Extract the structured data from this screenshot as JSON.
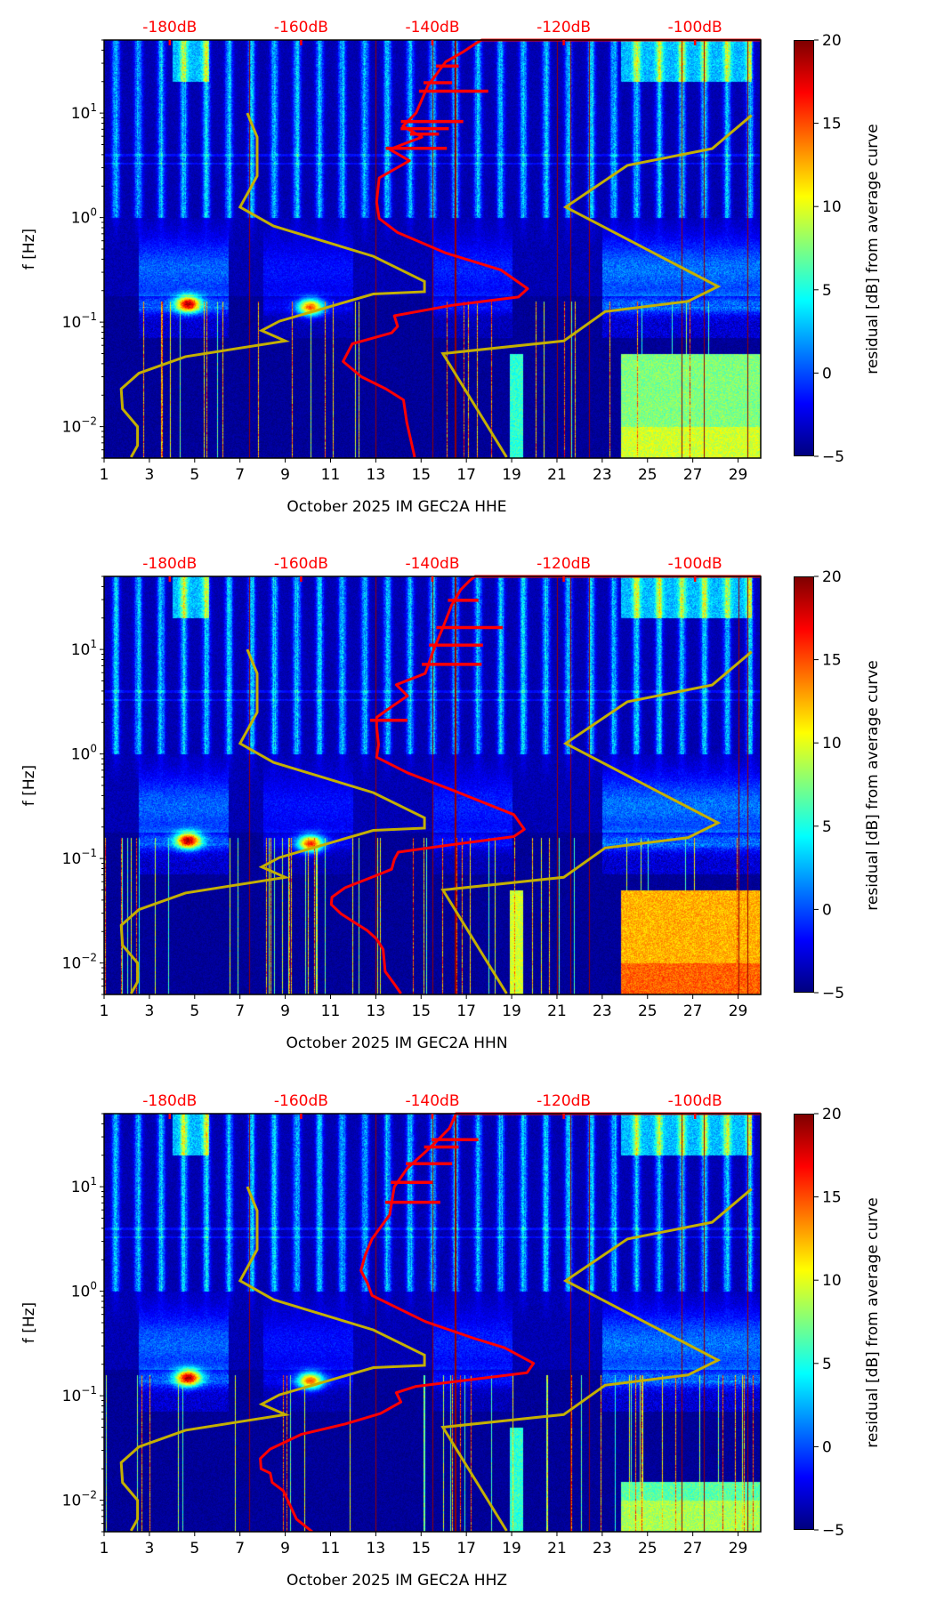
{
  "axes": {
    "ylabel": "f [Hz]",
    "xlim": [
      1,
      30
    ],
    "ylim": [
      0.005,
      50
    ],
    "x_ticks": [
      1,
      3,
      5,
      7,
      9,
      11,
      13,
      15,
      17,
      19,
      21,
      23,
      25,
      27,
      29
    ],
    "x_tick_labels": [
      "1",
      "3",
      "5",
      "7",
      "9",
      "11",
      "13",
      "15",
      "17",
      "19",
      "21",
      "23",
      "25",
      "27",
      "29"
    ],
    "y_ticks": [
      10,
      1,
      0.1,
      0.01
    ],
    "y_tick_labels": [
      {
        "base": "10",
        "exp": "1"
      },
      {
        "base": "10",
        "exp": "0"
      },
      {
        "base": "10",
        "exp": "−1"
      },
      {
        "base": "10",
        "exp": "−2"
      }
    ],
    "db_range": [
      -190,
      -90
    ],
    "db_ticks": [
      -180,
      -160,
      -140,
      -120,
      -100
    ],
    "db_tick_labels": [
      "-180dB",
      "-160dB",
      "-140dB",
      "-120dB",
      "-100dB"
    ],
    "db_color": "#ff0000",
    "colorbar": {
      "label": "residual [dB] from average curve",
      "range": [
        -5,
        20
      ],
      "ticks": [
        -5,
        0,
        5,
        10,
        15,
        20
      ],
      "tick_labels": [
        "−5",
        "0",
        "5",
        "10",
        "15",
        "20"
      ]
    }
  },
  "models": {
    "color": "#c4b000",
    "nlnm": [
      [
        -185.9,
        0.0051
      ],
      [
        -184.9,
        0.0066
      ],
      [
        -184.9,
        0.01
      ],
      [
        -187.2,
        0.0148
      ],
      [
        -187.4,
        0.0229
      ],
      [
        -184.7,
        0.0324
      ],
      [
        -177.6,
        0.0468
      ],
      [
        -162.4,
        0.066
      ],
      [
        -166.0,
        0.083
      ],
      [
        -163.3,
        0.102
      ],
      [
        -149.0,
        0.186
      ],
      [
        -141.2,
        0.195
      ],
      [
        -141.2,
        0.245
      ],
      [
        -149.0,
        0.427
      ],
      [
        -164.2,
        0.83
      ],
      [
        -169.3,
        1.26
      ],
      [
        -166.7,
        2.5
      ],
      [
        -166.7,
        5.9
      ],
      [
        -168.2,
        10
      ]
    ],
    "nhnm": [
      [
        -128.7,
        0.0051
      ],
      [
        -138.4,
        0.05
      ],
      [
        -120.0,
        0.066
      ],
      [
        -113.7,
        0.126
      ],
      [
        -101.1,
        0.158
      ],
      [
        -96.5,
        0.219
      ],
      [
        -119.7,
        1.26
      ],
      [
        -110.3,
        3.16
      ],
      [
        -97.4,
        4.57
      ],
      [
        -91.4,
        9.5
      ]
    ]
  },
  "chart_data": [
    {
      "type": "heatmap",
      "title": "October 2025 IM GEC2A  HHE",
      "xlabel": "October 2025 IM GEC2A  HHE",
      "channel": "HHE",
      "mean_psd_color": "#ff0000",
      "mean_psd": [
        [
          -142.7,
          0.0051
        ],
        [
          -143.9,
          0.011
        ],
        [
          -144.4,
          0.018
        ],
        [
          -147.1,
          0.023
        ],
        [
          -150.8,
          0.03
        ],
        [
          -153.6,
          0.042
        ],
        [
          -152.2,
          0.062
        ],
        [
          -146.2,
          0.079
        ],
        [
          -145.3,
          0.091
        ],
        [
          -145.8,
          0.115
        ],
        [
          -137.0,
          0.145
        ],
        [
          -126.9,
          0.174
        ],
        [
          -125.5,
          0.209
        ],
        [
          -129.6,
          0.316
        ],
        [
          -137.9,
          0.457
        ],
        [
          -145.3,
          0.72
        ],
        [
          -148.1,
          0.98
        ],
        [
          -148.5,
          1.41
        ],
        [
          -148.1,
          2.4
        ],
        [
          -143.5,
          3.5
        ],
        [
          -146.5,
          4.5
        ],
        [
          -141.6,
          5.9
        ],
        [
          -144.5,
          7.5
        ],
        [
          -142.5,
          10
        ],
        [
          -140.7,
          18.2
        ],
        [
          -138.0,
          30.9
        ],
        [
          -135.2,
          38.9
        ],
        [
          -133.3,
          46.8
        ],
        [
          -132.5,
          50
        ],
        [
          -90,
          50
        ]
      ],
      "psd_spikes": [
        [
          16.2,
          -131.5
        ],
        [
          19.5,
          -137
        ],
        [
          28.2,
          -136
        ],
        [
          8.3,
          -135.3
        ],
        [
          7.1,
          -137.5
        ],
        [
          4.6,
          -137.8
        ],
        [
          6.3,
          -139
        ]
      ],
      "features": {
        "hotspots": [
          [
            4.7,
            0.15,
            19
          ],
          [
            10.1,
            0.14,
            17
          ]
        ],
        "low_block_level": 9,
        "low_block_fmax": 0.05,
        "d19_level": 6,
        "bright_lines": [
          7.4,
          13.0,
          15.5,
          16.5,
          21.0,
          21.6,
          22.4,
          26.5,
          27.5,
          29.4
        ]
      }
    },
    {
      "type": "heatmap",
      "title": "October 2025 IM GEC2A  HHN",
      "xlabel": "October 2025 IM GEC2A  HHN",
      "channel": "HHN",
      "mean_psd_color": "#ff0000",
      "mean_psd": [
        [
          -144.8,
          0.0051
        ],
        [
          -145.8,
          0.0063
        ],
        [
          -147.2,
          0.0083
        ],
        [
          -147.5,
          0.0135
        ],
        [
          -148.5,
          0.017
        ],
        [
          -149.9,
          0.0204
        ],
        [
          -151.9,
          0.0245
        ],
        [
          -153.9,
          0.0295
        ],
        [
          -155.4,
          0.0363
        ],
        [
          -155.3,
          0.0427
        ],
        [
          -153.3,
          0.0525
        ],
        [
          -148.5,
          0.069
        ],
        [
          -146.2,
          0.079
        ],
        [
          -145.8,
          0.098
        ],
        [
          -145.2,
          0.115
        ],
        [
          -138.4,
          0.132
        ],
        [
          -127.6,
          0.162
        ],
        [
          -126.0,
          0.19
        ],
        [
          -127.6,
          0.263
        ],
        [
          -136.4,
          0.437
        ],
        [
          -143.8,
          0.66
        ],
        [
          -148.5,
          0.93
        ],
        [
          -148.2,
          1.23
        ],
        [
          -148.5,
          1.82
        ],
        [
          -148.5,
          2.24
        ],
        [
          -146.5,
          2.75
        ],
        [
          -143.8,
          3.6
        ],
        [
          -145.5,
          4.6
        ],
        [
          -141.1,
          5.9
        ],
        [
          -139.8,
          10
        ],
        [
          -138.4,
          16.2
        ],
        [
          -137.1,
          26.3
        ],
        [
          -135.7,
          37.2
        ],
        [
          -134.3,
          45.7
        ],
        [
          -133.5,
          50
        ],
        [
          -90,
          50
        ]
      ],
      "psd_spikes": [
        [
          16.2,
          -129.3
        ],
        [
          11,
          -132.3
        ],
        [
          7.2,
          -132.5
        ],
        [
          29.5,
          -133
        ],
        [
          2.1,
          -143.8
        ]
      ],
      "features": {
        "hotspots": [
          [
            4.7,
            0.15,
            19
          ],
          [
            10.1,
            0.14,
            18
          ]
        ],
        "low_block_level": 14,
        "low_block_fmax": 0.05,
        "d19_level": 10,
        "bright_lines": [
          7.4,
          13.0,
          15.5,
          16.5,
          21.0,
          21.6,
          22.4,
          29.0,
          29.4
        ]
      }
    },
    {
      "type": "heatmap",
      "title": "October 2025 IM GEC2A  HHZ",
      "xlabel": "October 2025 IM GEC2A  HHZ",
      "channel": "HHZ",
      "mean_psd_color": "#ff0000",
      "mean_psd": [
        [
          -158.3,
          0.005
        ],
        [
          -160.7,
          0.0066
        ],
        [
          -162.7,
          0.0123
        ],
        [
          -164.4,
          0.0148
        ],
        [
          -164.7,
          0.0182
        ],
        [
          -166.1,
          0.02
        ],
        [
          -166.2,
          0.0251
        ],
        [
          -164.7,
          0.0309
        ],
        [
          -160.0,
          0.0427
        ],
        [
          -153.3,
          0.0537
        ],
        [
          -147.9,
          0.0676
        ],
        [
          -144.8,
          0.087
        ],
        [
          -145.5,
          0.107
        ],
        [
          -142.5,
          0.123
        ],
        [
          -125.6,
          0.166
        ],
        [
          -124.6,
          0.204
        ],
        [
          -129.0,
          0.288
        ],
        [
          -133.7,
          0.355
        ],
        [
          -141.1,
          0.513
        ],
        [
          -149.2,
          0.91
        ],
        [
          -149.9,
          1.2
        ],
        [
          -150.9,
          1.58
        ],
        [
          -150.2,
          2.24
        ],
        [
          -149.2,
          3.16
        ],
        [
          -146.5,
          5.4
        ],
        [
          -145.8,
          10
        ],
        [
          -143.8,
          15.1
        ],
        [
          -141.1,
          21.4
        ],
        [
          -139.1,
          28.2
        ],
        [
          -137.4,
          36.3
        ],
        [
          -136.4,
          50
        ],
        [
          -90,
          50
        ]
      ],
      "psd_spikes": [
        [
          28.2,
          -133
        ],
        [
          24,
          -136
        ],
        [
          7.1,
          -138.8
        ],
        [
          11,
          -140
        ],
        [
          16.6,
          -137
        ]
      ],
      "features": {
        "hotspots": [
          [
            4.7,
            0.15,
            19
          ],
          [
            10.1,
            0.14,
            17
          ]
        ],
        "low_block_level": 8,
        "low_block_fmax": 0.015,
        "d19_level": 6,
        "bright_lines": [
          7.4,
          13.0,
          15.5,
          16.5,
          21.6,
          22.4,
          26.5,
          27.5,
          29.4
        ]
      }
    }
  ]
}
